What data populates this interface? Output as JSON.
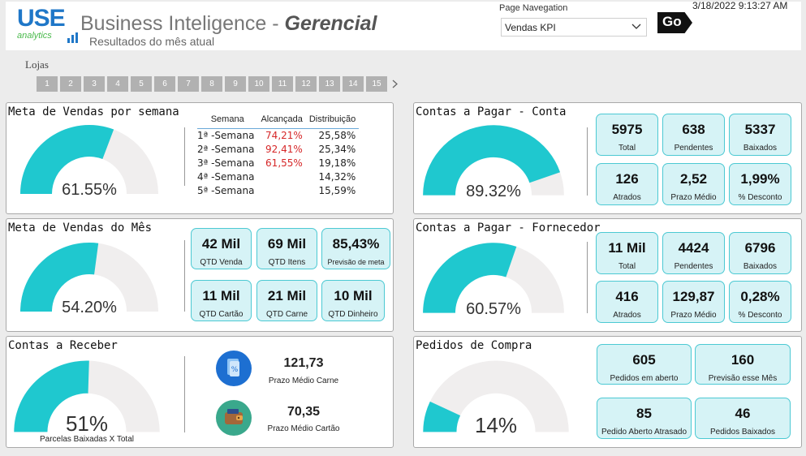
{
  "header": {
    "logo_top": "USE",
    "logo_bottom": "analytics",
    "title_main": "Business Inteligence - ",
    "title_emph": "Gerencial",
    "subtitle": "Resultados do mês atual",
    "nav_label": "Page Navegation",
    "nav_value": "Vendas KPI",
    "go_label": "Go",
    "datetime": "3/18/2022 9:13:27 AM"
  },
  "lojas": {
    "label": "Lojas",
    "buttons": [
      "1",
      "2",
      "3",
      "4",
      "5",
      "6",
      "7",
      "8",
      "9",
      "10",
      "11",
      "12",
      "13",
      "14",
      "15"
    ]
  },
  "colors": {
    "accent": "#1fc8cf",
    "track": "#f0eeee",
    "kpi_bg": "#d6f3f6",
    "kpi_border": "#4cc9d3",
    "red": "#d62728"
  },
  "meta_semana": {
    "title": "Meta de Vendas por semana",
    "gauge_value": "61.55%",
    "gauge_fraction": 0.6155,
    "columns": [
      "Semana",
      "Alcançada",
      "Distribuição"
    ],
    "rows": [
      {
        "semana": "1ª -Semana",
        "alcancada": "74,21%",
        "distribuicao": "25,58%"
      },
      {
        "semana": "2ª -Semana",
        "alcancada": "92,41%",
        "distribuicao": "25,34%"
      },
      {
        "semana": "3ª -Semana",
        "alcancada": "61,55%",
        "distribuicao": "19,18%"
      },
      {
        "semana": "4ª -Semana",
        "alcancada": "",
        "distribuicao": "14,32%"
      },
      {
        "semana": "5ª -Semana",
        "alcancada": "",
        "distribuicao": "15,59%"
      }
    ]
  },
  "meta_mes": {
    "title": "Meta de Vendas do Mês",
    "gauge_value": "54.20%",
    "gauge_fraction": 0.542,
    "kpis": [
      {
        "value": "42 Mil",
        "label": "QTD Venda"
      },
      {
        "value": "69 Mil",
        "label": "QTD Itens"
      },
      {
        "value": "85,43%",
        "label": "Previsão de meta"
      },
      {
        "value": "11 Mil",
        "label": "QTD Cartão"
      },
      {
        "value": "21 Mil",
        "label": "QTD Carne"
      },
      {
        "value": "10 Mil",
        "label": "QTD Dinheiro"
      }
    ]
  },
  "contas_receber": {
    "title": "Contas a Receber",
    "gauge_value": "51%",
    "gauge_fraction": 0.51,
    "gauge_caption": "Parcelas Baixadas  X Total",
    "items": [
      {
        "value": "121,73",
        "label": "Prazo Médio Carne",
        "icon": "document-percent-icon"
      },
      {
        "value": "70,35",
        "label": "Prazo Médio Cartão",
        "icon": "wallet-icon"
      }
    ]
  },
  "contas_pagar_conta": {
    "title": "Contas a Pagar - Conta",
    "gauge_value": "89.32%",
    "gauge_fraction": 0.8932,
    "kpis": [
      {
        "value": "5975",
        "label": "Total"
      },
      {
        "value": "638",
        "label": "Pendentes"
      },
      {
        "value": "5337",
        "label": "Baixados"
      },
      {
        "value": "126",
        "label": "Atrados"
      },
      {
        "value": "2,52",
        "label": "Prazo Médio"
      },
      {
        "value": "1,99%",
        "label": "% Desconto"
      }
    ]
  },
  "contas_pagar_fornecedor": {
    "title": "Contas a Pagar - Fornecedor",
    "gauge_value": "60.57%",
    "gauge_fraction": 0.6057,
    "kpis": [
      {
        "value": "11 Mil",
        "label": "Total"
      },
      {
        "value": "4424",
        "label": "Pendentes"
      },
      {
        "value": "6796",
        "label": "Baixados"
      },
      {
        "value": "416",
        "label": "Atrados"
      },
      {
        "value": "129,87",
        "label": "Prazo Médio"
      },
      {
        "value": "0,28%",
        "label": "% Desconto"
      }
    ]
  },
  "pedidos_compra": {
    "title": "Pedidos de Compra",
    "gauge_value": "14%",
    "gauge_fraction": 0.14,
    "kpis": [
      {
        "value": "605",
        "label": "Pedidos em aberto"
      },
      {
        "value": "160",
        "label": "Previsão esse Mês"
      },
      {
        "value": "85",
        "label": "Pedido Aberto Atrasado"
      },
      {
        "value": "46",
        "label": "Pedidos Baixados"
      }
    ]
  }
}
